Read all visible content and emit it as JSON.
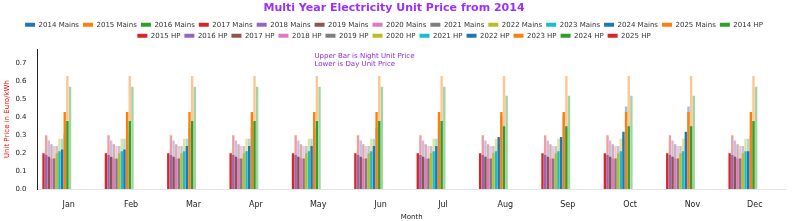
{
  "chart_data": {
    "type": "bar",
    "title": "Multi Year Electricity Unit Price from 2014",
    "x_label": "Month",
    "y_label": "Unit Price in Euro/kWh",
    "annotations": [
      "Upper Bar is Night Unit Price",
      "Lower is Day Unit Price"
    ],
    "categories": [
      "Jan",
      "Feb",
      "Mar",
      "Apr",
      "May",
      "Jun",
      "Jul",
      "Aug",
      "Sep",
      "Oct",
      "Nov",
      "Dec"
    ],
    "ylim": [
      0,
      0.78
    ],
    "yticks": [
      {
        "value": 0,
        "label": "0.0"
      },
      0.1,
      0.2,
      0.3,
      0.4,
      0.5,
      0.6,
      0.7
    ],
    "grid": false,
    "legend": "top",
    "series": [
      {
        "name": "2014 Mains",
        "color": "#1f77b4",
        "values": [
          null,
          null,
          null,
          null,
          null,
          null,
          null,
          null,
          null,
          null,
          null,
          null
        ],
        "night": [
          null,
          null,
          null,
          null,
          null,
          null,
          null,
          null,
          null,
          null,
          null,
          null
        ]
      },
      {
        "name": "2015 Mains",
        "color": "#ff7f0e",
        "values": [
          null,
          null,
          null,
          null,
          null,
          null,
          null,
          null,
          null,
          null,
          null,
          null
        ],
        "night": [
          null,
          null,
          null,
          null,
          null,
          null,
          null,
          null,
          null,
          null,
          null,
          null
        ]
      },
      {
        "name": "2016 Mains",
        "color": "#2ca02c",
        "values": [
          null,
          null,
          null,
          null,
          null,
          null,
          null,
          null,
          null,
          null,
          null,
          null
        ],
        "night": [
          null,
          null,
          null,
          null,
          null,
          null,
          null,
          null,
          null,
          null,
          null,
          null
        ]
      },
      {
        "name": "2017 Mains",
        "color": "#d62728",
        "values": [
          0.2,
          0.2,
          0.2,
          0.2,
          0.2,
          0.2,
          0.2,
          0.2,
          0.2,
          0.2,
          0.2,
          0.2
        ],
        "night": [
          0.3,
          0.3,
          0.3,
          0.3,
          0.3,
          0.3,
          0.3,
          0.3,
          0.3,
          0.3,
          0.3,
          0.3
        ]
      },
      {
        "name": "2018 Mains",
        "color": "#9467bd",
        "values": [
          0.19,
          0.19,
          0.19,
          0.19,
          0.19,
          0.19,
          0.19,
          0.19,
          0.19,
          0.19,
          0.19,
          0.19
        ],
        "night": [
          0.27,
          0.27,
          0.27,
          0.27,
          0.27,
          0.27,
          0.27,
          0.27,
          0.27,
          0.27,
          0.27,
          0.27
        ]
      },
      {
        "name": "2019 Mains",
        "color": "#8c564b",
        "values": [
          0.18,
          0.18,
          0.18,
          0.18,
          0.18,
          0.18,
          0.18,
          0.18,
          0.18,
          0.18,
          0.18,
          0.18
        ],
        "night": [
          0.25,
          0.25,
          0.25,
          0.25,
          0.25,
          0.25,
          0.25,
          0.25,
          0.25,
          0.25,
          0.25,
          0.25
        ]
      },
      {
        "name": "2020 Mains",
        "color": "#e377c2",
        "values": [
          0.17,
          0.17,
          0.17,
          0.17,
          0.17,
          0.17,
          0.17,
          0.17,
          0.17,
          0.17,
          0.17,
          0.17
        ],
        "night": [
          0.24,
          0.24,
          0.24,
          0.24,
          0.24,
          0.24,
          0.24,
          0.24,
          0.24,
          0.24,
          0.24,
          0.24
        ]
      },
      {
        "name": "2021 Mains",
        "color": "#7f7f7f",
        "values": [
          0.17,
          0.17,
          0.17,
          0.17,
          0.17,
          0.17,
          0.17,
          0.17,
          0.17,
          0.17,
          0.17,
          0.17
        ],
        "night": [
          0.24,
          0.24,
          0.24,
          0.24,
          0.24,
          0.24,
          0.24,
          0.24,
          0.24,
          0.24,
          0.24,
          0.24
        ]
      },
      {
        "name": "2022 Mains",
        "color": "#bcbd22",
        "values": [
          0.2,
          0.2,
          0.2,
          0.2,
          0.2,
          0.2,
          0.2,
          0.2,
          0.2,
          0.2,
          0.2,
          0.2
        ],
        "night": [
          0.28,
          0.28,
          0.28,
          0.28,
          0.28,
          0.28,
          0.28,
          0.28,
          0.28,
          0.28,
          0.28,
          0.28
        ]
      },
      {
        "name": "2023 Mains",
        "color": "#17becf",
        "values": [
          0.21,
          0.21,
          0.21,
          0.21,
          0.21,
          0.21,
          0.21,
          0.21,
          0.21,
          0.21,
          0.21,
          0.21
        ],
        "night": [
          0.28,
          0.28,
          0.28,
          0.28,
          0.28,
          0.28,
          0.28,
          0.28,
          0.28,
          0.28,
          0.28,
          0.28
        ]
      },
      {
        "name": "2024 Mains",
        "color": "#1f77b4",
        "values": [
          0.22,
          0.22,
          0.24,
          0.24,
          0.24,
          0.24,
          0.24,
          0.29,
          0.29,
          0.32,
          0.32,
          0.21
        ],
        "night": [
          0.31,
          0.31,
          0.34,
          0.34,
          0.34,
          0.34,
          0.34,
          0.41,
          0.41,
          0.46,
          0.46,
          0.3
        ]
      },
      {
        "name": "2025 Mains",
        "color": "#ff7f0e",
        "values": [
          null,
          null,
          null,
          null,
          null,
          null,
          null,
          null,
          null,
          null,
          null,
          null
        ],
        "night": [
          null,
          null,
          null,
          null,
          null,
          null,
          null,
          null,
          null,
          null,
          null,
          null
        ]
      },
      {
        "name": "2014 HP",
        "color": "#2ca02c",
        "values": [
          null,
          null,
          null,
          null,
          null,
          null,
          null,
          null,
          null,
          null,
          null,
          null
        ],
        "night": [
          null,
          null,
          null,
          null,
          null,
          null,
          null,
          null,
          null,
          null,
          null,
          null
        ]
      },
      {
        "name": "2015 HP",
        "color": "#d62728",
        "values": [
          null,
          null,
          null,
          null,
          null,
          null,
          null,
          null,
          null,
          null,
          null,
          null
        ],
        "night": [
          null,
          null,
          null,
          null,
          null,
          null,
          null,
          null,
          null,
          null,
          null,
          null
        ]
      },
      {
        "name": "2016 HP",
        "color": "#9467bd",
        "values": [
          null,
          null,
          null,
          null,
          null,
          null,
          null,
          null,
          null,
          null,
          null,
          null
        ],
        "night": [
          null,
          null,
          null,
          null,
          null,
          null,
          null,
          null,
          null,
          null,
          null,
          null
        ]
      },
      {
        "name": "2017 HP",
        "color": "#8c564b",
        "values": [
          null,
          null,
          null,
          null,
          null,
          null,
          null,
          null,
          null,
          null,
          null,
          null
        ],
        "night": [
          null,
          null,
          null,
          null,
          null,
          null,
          null,
          null,
          null,
          null,
          null,
          null
        ]
      },
      {
        "name": "2018 HP",
        "color": "#e377c2",
        "values": [
          null,
          null,
          null,
          null,
          null,
          null,
          null,
          null,
          null,
          null,
          null,
          null
        ],
        "night": [
          null,
          null,
          null,
          null,
          null,
          null,
          null,
          null,
          null,
          null,
          null,
          null
        ]
      },
      {
        "name": "2019 HP",
        "color": "#7f7f7f",
        "values": [
          null,
          null,
          null,
          null,
          null,
          null,
          null,
          null,
          null,
          null,
          null,
          null
        ],
        "night": [
          null,
          null,
          null,
          null,
          null,
          null,
          null,
          null,
          null,
          null,
          null,
          null
        ]
      },
      {
        "name": "2020 HP",
        "color": "#bcbd22",
        "values": [
          null,
          null,
          null,
          null,
          null,
          null,
          null,
          null,
          null,
          null,
          null,
          null
        ],
        "night": [
          null,
          null,
          null,
          null,
          null,
          null,
          null,
          null,
          null,
          null,
          null,
          null
        ]
      },
      {
        "name": "2021 HP",
        "color": "#17becf",
        "values": [
          null,
          null,
          null,
          null,
          null,
          null,
          null,
          null,
          null,
          null,
          null,
          null
        ],
        "night": [
          null,
          null,
          null,
          null,
          null,
          null,
          null,
          null,
          null,
          null,
          null,
          null
        ]
      },
      {
        "name": "2022 HP",
        "color": "#1f77b4",
        "values": [
          null,
          null,
          null,
          null,
          null,
          null,
          null,
          null,
          null,
          null,
          null,
          null
        ],
        "night": [
          null,
          null,
          null,
          null,
          null,
          null,
          null,
          null,
          null,
          null,
          null,
          null
        ]
      },
      {
        "name": "2023 HP",
        "color": "#ff7f0e",
        "values": [
          0.43,
          0.43,
          0.43,
          0.43,
          0.43,
          0.43,
          0.43,
          0.43,
          0.43,
          0.43,
          0.43,
          0.43
        ],
        "night": [
          0.63,
          0.63,
          0.63,
          0.63,
          0.63,
          0.63,
          0.63,
          0.63,
          0.63,
          0.63,
          0.63,
          0.63
        ]
      },
      {
        "name": "2024 HP",
        "color": "#2ca02c",
        "values": [
          0.38,
          0.38,
          0.38,
          0.38,
          0.38,
          0.38,
          0.38,
          0.35,
          0.35,
          0.35,
          0.35,
          0.38
        ],
        "night": [
          0.57,
          0.57,
          0.57,
          0.57,
          0.57,
          0.57,
          0.57,
          0.52,
          0.52,
          0.52,
          0.52,
          0.57
        ]
      },
      {
        "name": "2025 HP",
        "color": "#d62728",
        "values": [
          null,
          null,
          null,
          null,
          null,
          null,
          null,
          null,
          null,
          null,
          null,
          null
        ],
        "night": [
          null,
          null,
          null,
          null,
          null,
          null,
          null,
          null,
          null,
          null,
          null,
          null
        ]
      }
    ]
  }
}
